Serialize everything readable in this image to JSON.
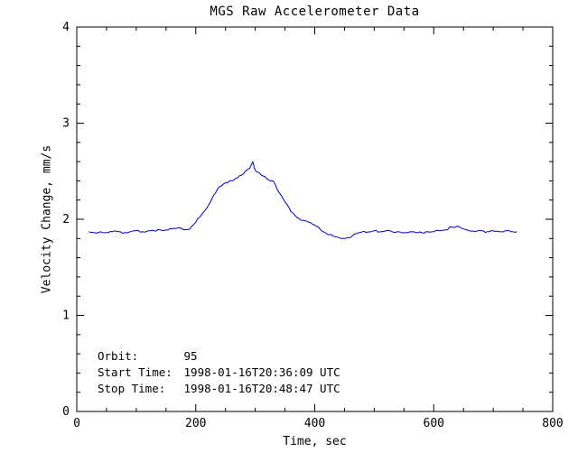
{
  "chart_data": {
    "type": "line",
    "title": "MGS Raw Accelerometer Data",
    "xlabel": "Time, sec",
    "ylabel": "Velocity Change, mm/s",
    "xlim": [
      0,
      800
    ],
    "ylim": [
      0,
      4
    ],
    "xticks": [
      0,
      200,
      400,
      600,
      800
    ],
    "yticks": [
      0,
      1,
      2,
      3,
      4
    ],
    "x_minor_step": 50,
    "y_minor_step": 0.2,
    "grid": false,
    "legend": "none",
    "line_color": "#0000cc",
    "axis_color": "#000000",
    "background": "#ffffff",
    "series": [
      {
        "name": "velocity_change_mm_s",
        "x": [
          20,
          30,
          40,
          50,
          60,
          70,
          80,
          90,
          100,
          110,
          120,
          130,
          140,
          150,
          160,
          170,
          180,
          190,
          200,
          210,
          220,
          230,
          240,
          250,
          260,
          270,
          280,
          290,
          293,
          296,
          298,
          300,
          310,
          320,
          330,
          340,
          350,
          360,
          370,
          380,
          390,
          400,
          410,
          420,
          430,
          440,
          450,
          460,
          470,
          480,
          490,
          500,
          510,
          520,
          530,
          540,
          550,
          560,
          570,
          580,
          590,
          600,
          610,
          620,
          630,
          640,
          650,
          660,
          670,
          680,
          690,
          700,
          710,
          720,
          730,
          740
        ],
        "y": [
          1.87,
          1.86,
          1.87,
          1.86,
          1.87,
          1.87,
          1.86,
          1.87,
          1.88,
          1.87,
          1.88,
          1.88,
          1.89,
          1.89,
          1.9,
          1.91,
          1.89,
          1.9,
          1.97,
          2.05,
          2.13,
          2.25,
          2.34,
          2.38,
          2.4,
          2.43,
          2.47,
          2.53,
          2.56,
          2.6,
          2.55,
          2.51,
          2.46,
          2.42,
          2.4,
          2.28,
          2.18,
          2.08,
          2.02,
          1.99,
          1.97,
          1.94,
          1.89,
          1.85,
          1.83,
          1.81,
          1.8,
          1.81,
          1.85,
          1.87,
          1.87,
          1.88,
          1.87,
          1.88,
          1.87,
          1.87,
          1.86,
          1.87,
          1.86,
          1.86,
          1.87,
          1.87,
          1.88,
          1.89,
          1.92,
          1.93,
          1.9,
          1.88,
          1.87,
          1.88,
          1.87,
          1.88,
          1.87,
          1.88,
          1.87,
          1.87
        ]
      }
    ],
    "annotations": [
      {
        "label": "Orbit:",
        "value": "95"
      },
      {
        "label": "Start Time:",
        "value": "1998-01-16T20:36:09 UTC"
      },
      {
        "label": "Stop Time:",
        "value": "1998-01-16T20:48:47 UTC"
      }
    ]
  }
}
